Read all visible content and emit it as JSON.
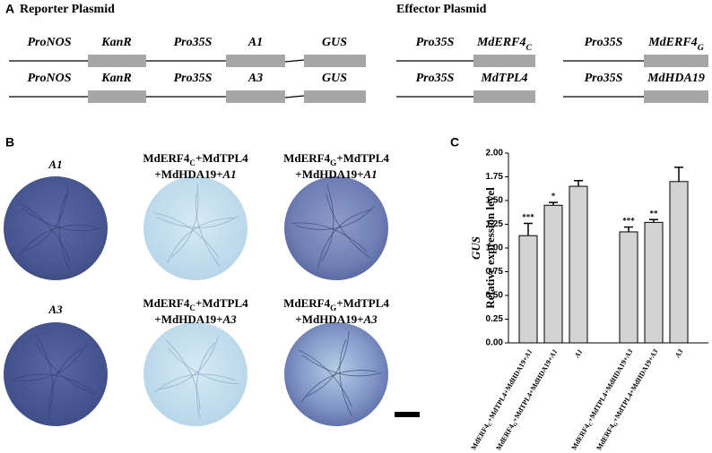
{
  "panel_a": {
    "label": "A",
    "reporter_title": "Reporter Plasmid",
    "effector_title": "Effector Plasmid",
    "reporter_rows": [
      [
        "ProNOS",
        "KanR",
        "Pro35S",
        "A1",
        "GUS"
      ],
      [
        "ProNOS",
        "KanR",
        "Pro35S",
        "A3",
        "GUS"
      ]
    ],
    "effector_constructs": [
      {
        "promoter": "Pro35S",
        "gene": [
          {
            "text": "MdERF4"
          },
          {
            "text": "C",
            "sub": true
          }
        ]
      },
      {
        "promoter": "Pro35S",
        "gene": [
          {
            "text": "MdERF4"
          },
          {
            "text": "G",
            "sub": true
          }
        ]
      },
      {
        "promoter": "Pro35S",
        "gene": [
          {
            "text": "MdTPL4"
          }
        ]
      },
      {
        "promoter": "Pro35S",
        "gene": [
          {
            "text": "MdHDA19"
          }
        ]
      }
    ]
  },
  "panel_b": {
    "label": "B",
    "samples": [
      {
        "label": [
          [
            {
              "text": "A1",
              "italic": true
            }
          ]
        ]
      },
      {
        "label": [
          [
            {
              "text": "MdERF4"
            },
            {
              "text": "C",
              "sub": true
            },
            {
              "text": "+MdTPL4"
            }
          ],
          [
            {
              "text": "+MdHDA19+"
            },
            {
              "text": "A1",
              "italic": true
            }
          ]
        ]
      },
      {
        "label": [
          [
            {
              "text": "MdERF4"
            },
            {
              "text": "G",
              "sub": true
            },
            {
              "text": "+MdTPL4"
            }
          ],
          [
            {
              "text": "+MdHDA19+"
            },
            {
              "text": "A1",
              "italic": true
            }
          ]
        ]
      },
      {
        "label": [
          [
            {
              "text": "A3",
              "italic": true
            }
          ]
        ]
      },
      {
        "label": [
          [
            {
              "text": "MdERF4"
            },
            {
              "text": "C",
              "sub": true
            },
            {
              "text": "+MdTPL4"
            }
          ],
          [
            {
              "text": "+MdHDA19+"
            },
            {
              "text": "A3",
              "italic": true
            }
          ]
        ]
      },
      {
        "label": [
          [
            {
              "text": "MdERF4"
            },
            {
              "text": "G",
              "sub": true
            },
            {
              "text": "+MdTPL4"
            }
          ],
          [
            {
              "text": "+MdHDA19+"
            },
            {
              "text": "A3",
              "italic": true
            }
          ]
        ]
      }
    ]
  },
  "chart_data": {
    "type": "bar",
    "label": "C",
    "ylabel_gene": "GUS",
    "ylabel": "Relative expression level",
    "categories": [
      [
        {
          "text": "MdERF4"
        },
        {
          "text": "C",
          "sub": true
        },
        {
          "text": "+MdTPL4+MdHDA19+"
        },
        {
          "text": "A1",
          "italic": true
        }
      ],
      [
        {
          "text": "MdERF4"
        },
        {
          "text": "G",
          "sub": true
        },
        {
          "text": "+MdTPL4+MdHDA19+"
        },
        {
          "text": "A1",
          "italic": true
        }
      ],
      [
        {
          "text": "A1",
          "italic": true
        }
      ],
      null,
      [
        {
          "text": "MdERF4"
        },
        {
          "text": "C",
          "sub": true
        },
        {
          "text": "+MdTPL4+MdHDA19+"
        },
        {
          "text": "A3",
          "italic": true
        }
      ],
      [
        {
          "text": "MdERF4"
        },
        {
          "text": "G",
          "sub": true
        },
        {
          "text": "+MdTPL4+MdHDA19+"
        },
        {
          "text": "A3",
          "italic": true
        }
      ],
      [
        {
          "text": "A3",
          "italic": true
        }
      ]
    ],
    "values": [
      1.13,
      1.45,
      1.65,
      null,
      1.17,
      1.27,
      1.7
    ],
    "errors": [
      0.13,
      0.03,
      0.06,
      null,
      0.05,
      0.03,
      0.15
    ],
    "annotations": [
      "***",
      "*",
      null,
      null,
      "***",
      "**",
      null
    ],
    "color": "#d3d3d3",
    "ylim": [
      0,
      2
    ],
    "yticks": [
      {
        "value": 0,
        "label": "0.00"
      },
      {
        "value": 0.25,
        "label": "0.25"
      },
      {
        "value": 0.5,
        "label": "0.50"
      },
      {
        "value": 0.75,
        "label": "0.75"
      },
      {
        "value": 1,
        "label": "1.00"
      },
      {
        "value": 1.25,
        "label": "1.25"
      },
      {
        "value": 1.5,
        "label": "1.50"
      },
      {
        "value": 1.75,
        "label": "1.75"
      },
      {
        "value": 2,
        "label": "2.00"
      }
    ]
  }
}
